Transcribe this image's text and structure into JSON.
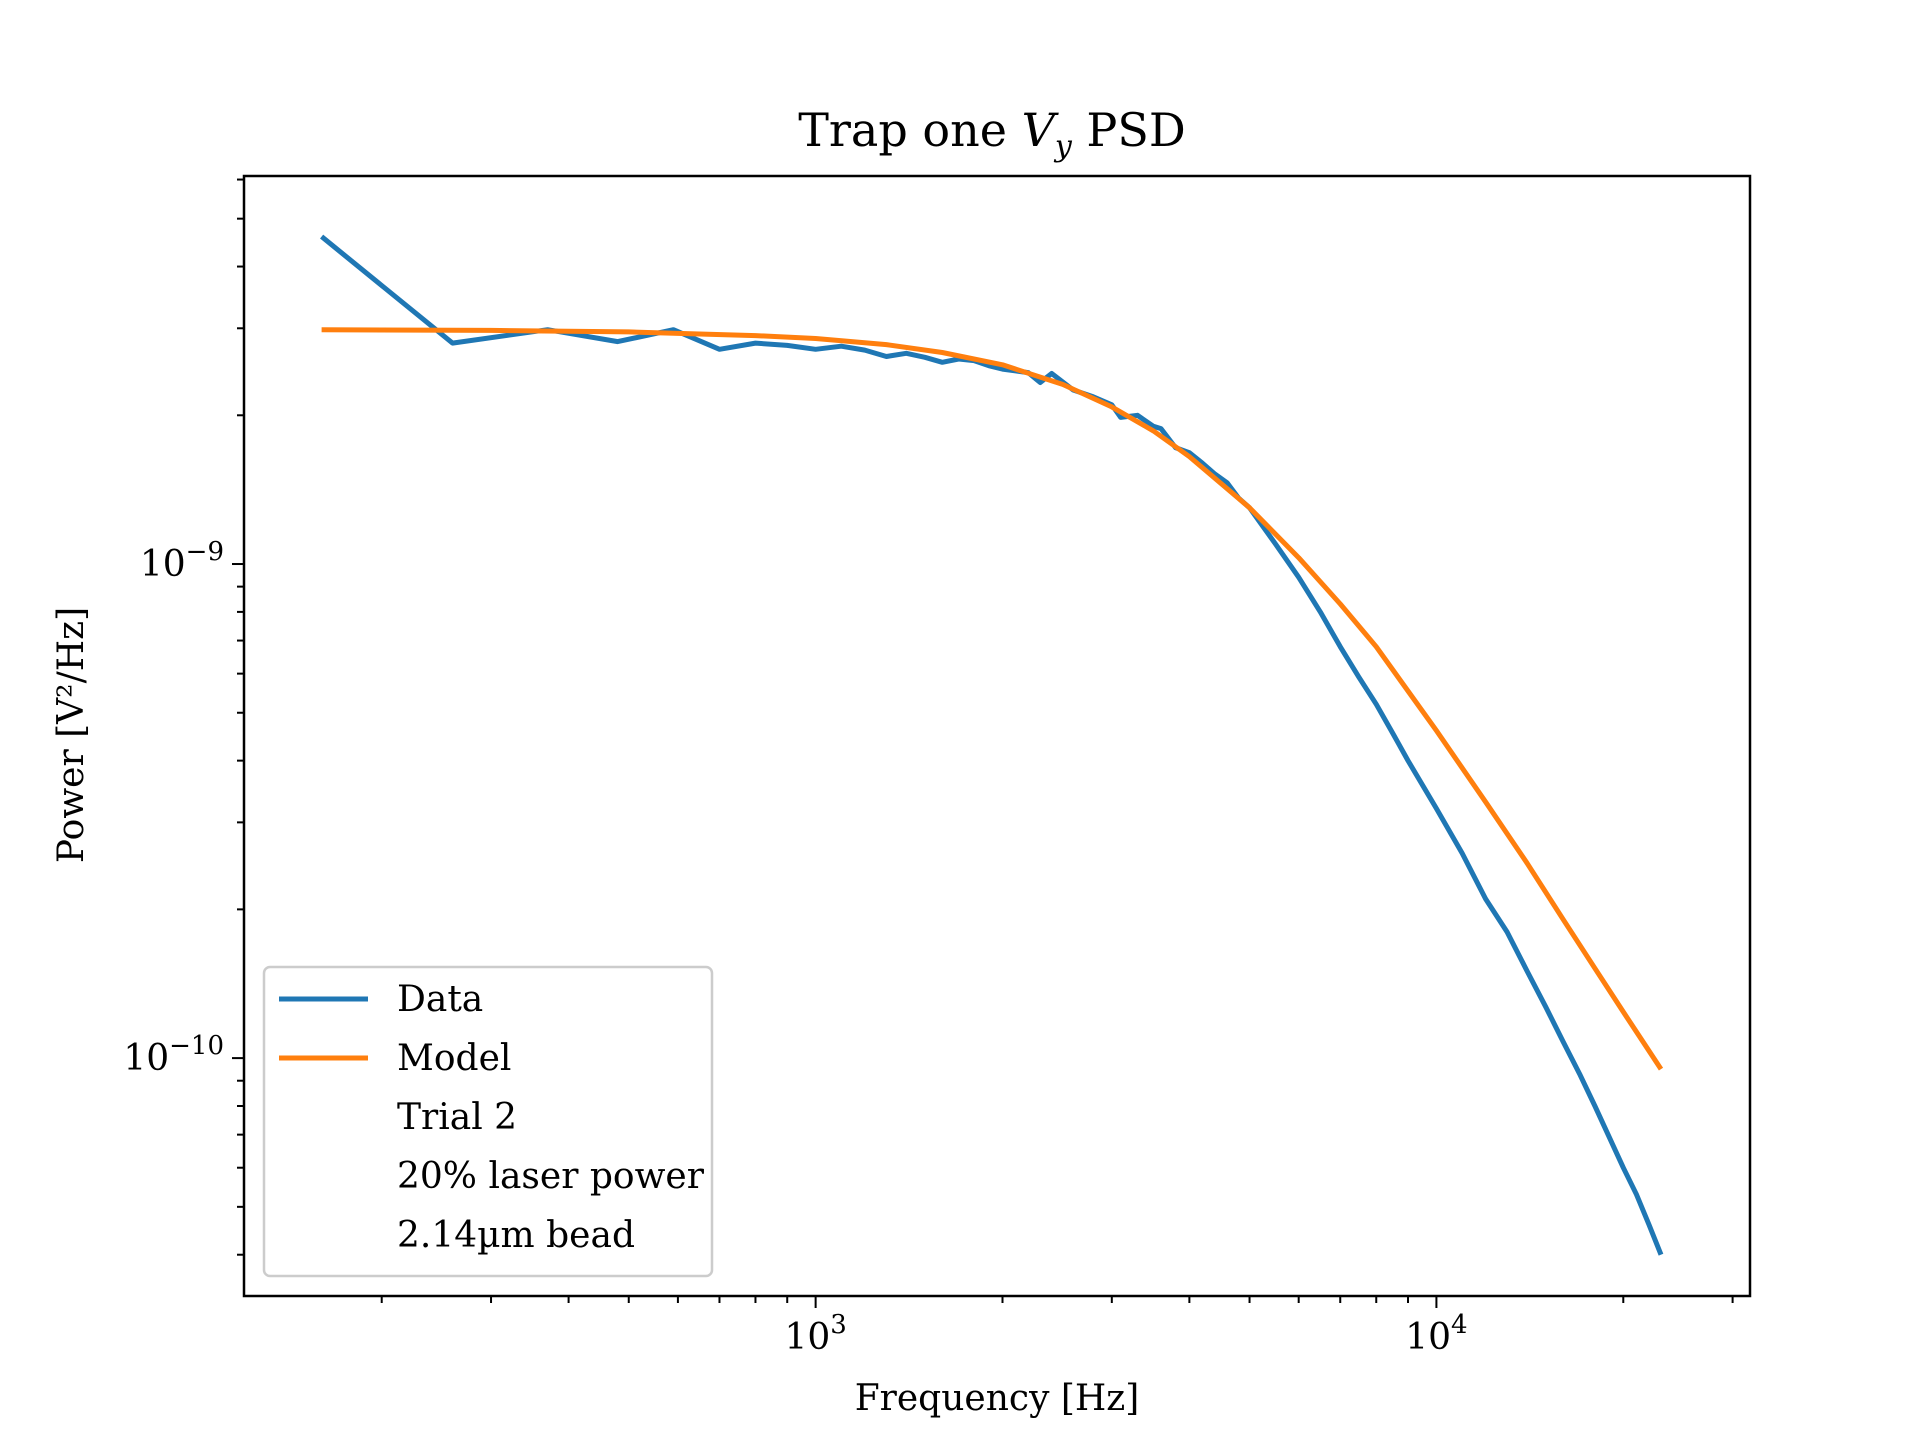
{
  "chart_data": {
    "type": "line",
    "title": {
      "prefix": "Trap one ",
      "var": "V",
      "sub": "y",
      "suffix": " PSD"
    },
    "xlabel": "Frequency [Hz]",
    "ylabel": "Power [V²/Hz]",
    "xscale": "log",
    "yscale": "log",
    "xlim": [
      120,
      32000
    ],
    "ylim": [
      3.3e-11,
      6.1e-09
    ],
    "x_ticks": [
      {
        "value": 1000,
        "base": "10",
        "exp": "3"
      },
      {
        "value": 10000,
        "base": "10",
        "exp": "4"
      }
    ],
    "y_ticks": [
      {
        "value": 1e-09,
        "base": "10",
        "exp": "−9"
      },
      {
        "value": 1e-10,
        "base": "10",
        "exp": "−10"
      }
    ],
    "grid": false,
    "legend_placement": "lower-left",
    "series": [
      {
        "name": "Data",
        "color": "#1f77b4",
        "x": [
          160,
          260,
          370,
          480,
          590,
          700,
          800,
          900,
          1000,
          1100,
          1200,
          1300,
          1400,
          1500,
          1600,
          1700,
          1800,
          1900,
          2000,
          2100,
          2200,
          2300,
          2400,
          2600,
          2800,
          3000,
          3100,
          3300,
          3500,
          3600,
          3800,
          4000,
          4200,
          4400,
          4600,
          4800,
          5000,
          5500,
          6000,
          6500,
          7000,
          7500,
          8000,
          8500,
          9000,
          10000,
          11000,
          12000,
          13000,
          14000,
          15000,
          16000,
          17000,
          18000,
          19000,
          20000,
          21000,
          22000,
          23000
        ],
        "y": [
          4.6e-09,
          2.8e-09,
          2.98e-09,
          2.82e-09,
          2.98e-09,
          2.72e-09,
          2.8e-09,
          2.77e-09,
          2.72e-09,
          2.76e-09,
          2.71e-09,
          2.63e-09,
          2.67e-09,
          2.62e-09,
          2.56e-09,
          2.6e-09,
          2.58e-09,
          2.52e-09,
          2.48e-09,
          2.46e-09,
          2.44e-09,
          2.33e-09,
          2.43e-09,
          2.25e-09,
          2.18e-09,
          2.1e-09,
          1.98e-09,
          2e-09,
          1.9e-09,
          1.88e-09,
          1.72e-09,
          1.68e-09,
          1.6e-09,
          1.52e-09,
          1.46e-09,
          1.36e-09,
          1.3e-09,
          1.1e-09,
          9.4e-10,
          8e-10,
          6.8e-10,
          5.9e-10,
          5.2e-10,
          4.55e-10,
          4e-10,
          3.2e-10,
          2.6e-10,
          2.1e-10,
          1.8e-10,
          1.5e-10,
          1.27e-10,
          1.08e-10,
          9.3e-11,
          8e-11,
          6.9e-11,
          6e-11,
          5.3e-11,
          4.6e-11,
          4e-11
        ]
      },
      {
        "name": "Model",
        "color": "#ff7f0e",
        "x": [
          160,
          300,
          500,
          800,
          1000,
          1300,
          1600,
          2000,
          2500,
          3000,
          3500,
          4000,
          5000,
          6000,
          7000,
          8000,
          10000,
          12000,
          14000,
          16000,
          18000,
          20000,
          23000
        ],
        "y": [
          2.98e-09,
          2.97e-09,
          2.95e-09,
          2.9e-09,
          2.86e-09,
          2.78e-09,
          2.68e-09,
          2.53e-09,
          2.31e-09,
          2.08e-09,
          1.86e-09,
          1.65e-09,
          1.3e-09,
          1.03e-09,
          8.3e-10,
          6.8e-10,
          4.6e-10,
          3.3e-10,
          2.48e-10,
          1.91e-10,
          1.52e-10,
          1.24e-10,
          9.5e-11
        ]
      }
    ],
    "legend": {
      "entries": [
        "Data",
        "Model"
      ],
      "extra_lines": [
        "Trial 2",
        "20% laser power",
        "2.14µm bead"
      ]
    }
  }
}
